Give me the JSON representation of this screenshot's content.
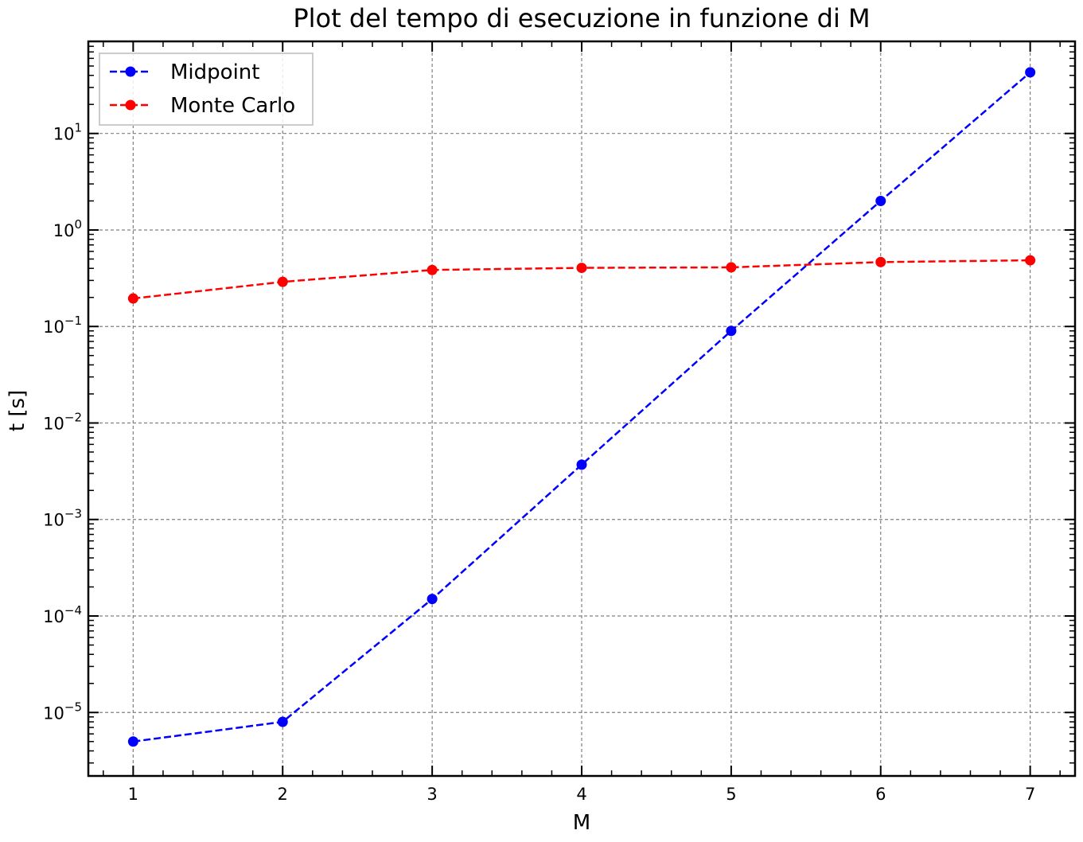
{
  "chart_data": {
    "type": "line",
    "title": "Plot del tempo di esecuzione in funzione di M",
    "xlabel": "M",
    "ylabel": "t [s]",
    "x": [
      1,
      2,
      3,
      4,
      5,
      6,
      7
    ],
    "x_ticks": [
      "1",
      "2",
      "3",
      "4",
      "5",
      "6",
      "7"
    ],
    "xlim": [
      0.7,
      7.3
    ],
    "yscale": "log",
    "ylim": [
      2.2e-06,
      90
    ],
    "y_ticks": [
      {
        "base": "10",
        "exp": "−5",
        "value": 1e-05
      },
      {
        "base": "10",
        "exp": "−4",
        "value": 0.0001
      },
      {
        "base": "10",
        "exp": "−3",
        "value": 0.001
      },
      {
        "base": "10",
        "exp": "−2",
        "value": 0.01
      },
      {
        "base": "10",
        "exp": "−1",
        "value": 0.1
      },
      {
        "base": "10",
        "exp": "0",
        "value": 1
      },
      {
        "base": "10",
        "exp": "1",
        "value": 10
      }
    ],
    "grid": true,
    "legend_position": "top-left",
    "series": [
      {
        "name": "Midpoint",
        "color": "#0000ff",
        "style": "dashed",
        "marker": "circle",
        "values": [
          5e-06,
          8e-06,
          0.00015,
          0.0037,
          0.09,
          2.0,
          43
        ]
      },
      {
        "name": "Monte Carlo",
        "color": "#ff0000",
        "style": "dashed",
        "marker": "circle",
        "values": [
          0.195,
          0.29,
          0.385,
          0.405,
          0.41,
          0.465,
          0.485
        ]
      }
    ]
  }
}
